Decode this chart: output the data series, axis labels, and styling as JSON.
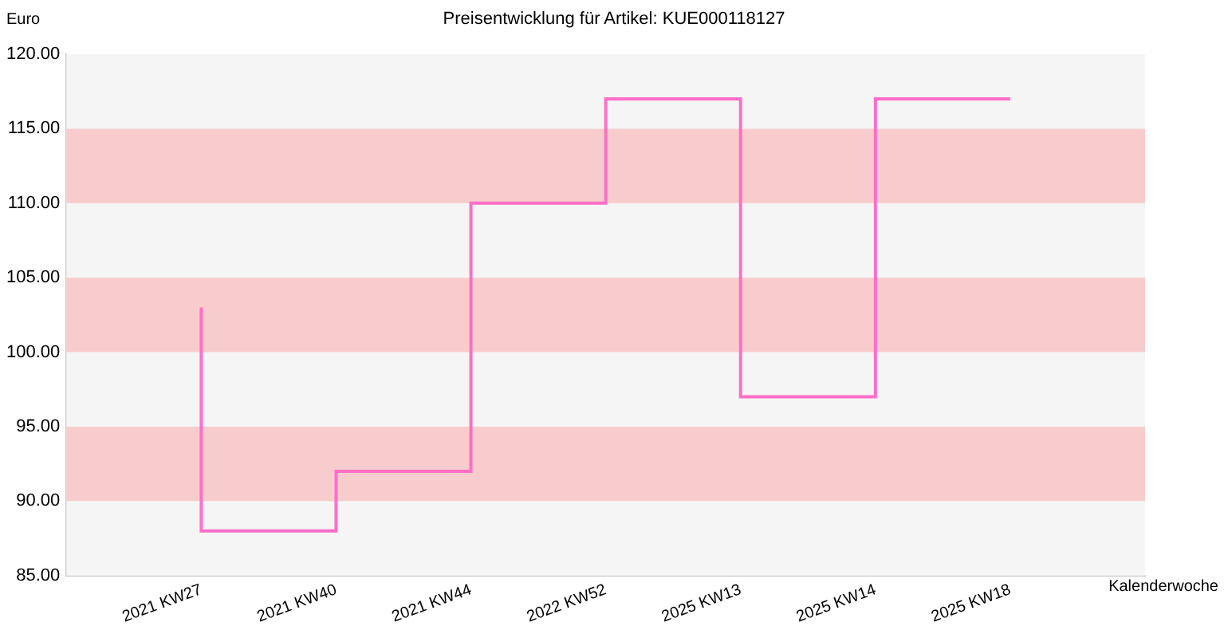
{
  "chart_data": {
    "type": "step",
    "title": "Preisentwicklung für Artikel: KUE000118127",
    "ylabel": "Euro",
    "xlabel": "Kalenderwoche",
    "categories": [
      "2021 KW27",
      "2021 KW40",
      "2021 KW44",
      "2022 KW52",
      "2025 KW13",
      "2025 KW14",
      "2025 KW18"
    ],
    "series": [
      {
        "color": "#ff6ec7",
        "values": [
          103,
          88,
          92,
          110,
          117,
          97,
          117
        ]
      }
    ],
    "ylim": [
      85,
      120
    ],
    "yticks": [
      {
        "value": 85,
        "label": "85.00"
      },
      {
        "value": 90,
        "label": "90.00"
      },
      {
        "value": 95,
        "label": "95.00"
      },
      {
        "value": 100,
        "label": "100.00"
      },
      {
        "value": 105,
        "label": "105.00"
      },
      {
        "value": 110,
        "label": "110.00"
      },
      {
        "value": 115,
        "label": "115.00"
      },
      {
        "value": 120,
        "label": "120.00"
      }
    ],
    "bands": [
      {
        "axis": "y",
        "from": 90,
        "to": 95,
        "color": "#f8cccc"
      },
      {
        "axis": "y",
        "from": 100,
        "to": 105,
        "color": "#f8cccc"
      },
      {
        "axis": "y",
        "from": 110,
        "to": 115,
        "color": "#f8cccc"
      }
    ],
    "grid": false,
    "legend": false
  }
}
